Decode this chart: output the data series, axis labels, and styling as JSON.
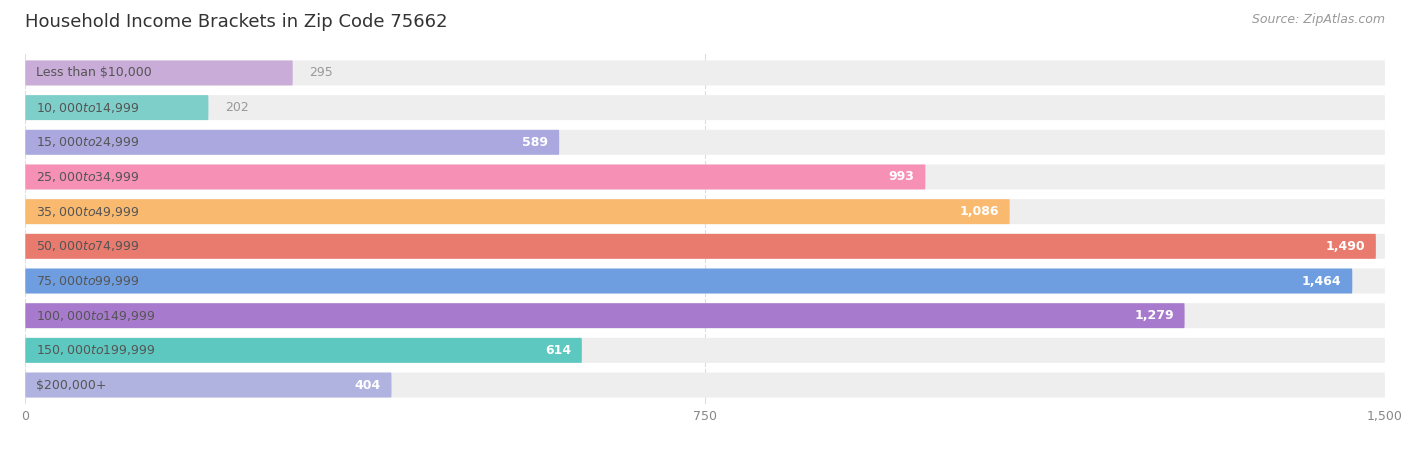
{
  "title": "Household Income Brackets in Zip Code 75662",
  "source": "Source: ZipAtlas.com",
  "categories": [
    "Less than $10,000",
    "$10,000 to $14,999",
    "$15,000 to $24,999",
    "$25,000 to $34,999",
    "$35,000 to $49,999",
    "$50,000 to $74,999",
    "$75,000 to $99,999",
    "$100,000 to $149,999",
    "$150,000 to $199,999",
    "$200,000+"
  ],
  "values": [
    295,
    202,
    589,
    993,
    1086,
    1490,
    1464,
    1279,
    614,
    404
  ],
  "bar_colors": [
    "#c9acd8",
    "#7ecfca",
    "#aba8df",
    "#f690b4",
    "#f9b96e",
    "#e97a6e",
    "#6e9de0",
    "#a87ace",
    "#5dc8bf",
    "#b0b2e0"
  ],
  "bar_bg_color": "#eeeeee",
  "xlim_max": 1500,
  "xticks": [
    0,
    750,
    1500
  ],
  "bg_color": "#ffffff",
  "title_fontsize": 13,
  "label_fontsize": 9,
  "value_fontsize": 9,
  "source_fontsize": 9,
  "bar_height": 0.72,
  "label_color": "#555555",
  "value_color_inside": "#ffffff",
  "value_color_outside": "#999999",
  "inside_threshold": 400,
  "tick_color": "#aaaaaa",
  "grid_color": "#dddddd"
}
